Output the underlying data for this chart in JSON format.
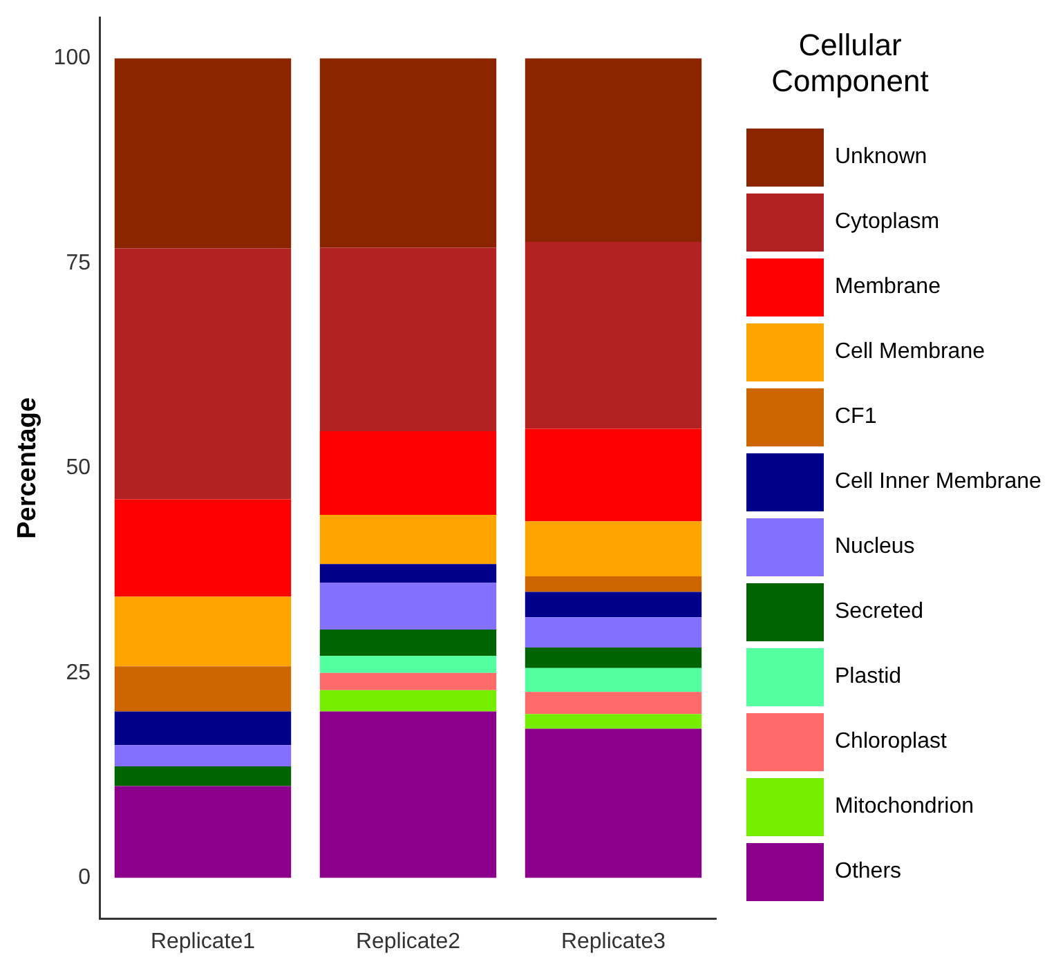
{
  "chart_data": {
    "type": "bar",
    "stacked": true,
    "ylabel": "Percentage",
    "legend_title": "Cellular Component",
    "legend": "right",
    "grid": false,
    "categories": [
      "Replicate1",
      "Replicate2",
      "Replicate3"
    ],
    "ylim": [
      -5,
      105
    ],
    "yticks": [
      0,
      25,
      50,
      75,
      100
    ],
    "series": [
      {
        "name": "Others",
        "color": "#8b008b",
        "values": [
          11.2,
          20.3,
          18.2
        ]
      },
      {
        "name": "Mitochondrion",
        "color": "#76ee00",
        "values": [
          0,
          2.6,
          1.8
        ]
      },
      {
        "name": "Chloroplast",
        "color": "#ff6a6a",
        "values": [
          0,
          2.1,
          2.7
        ]
      },
      {
        "name": "Plastid",
        "color": "#54ff9f",
        "values": [
          0,
          2.1,
          2.9
        ]
      },
      {
        "name": "Secreted",
        "color": "#006400",
        "values": [
          2.4,
          3.2,
          2.5
        ]
      },
      {
        "name": "Nucleus",
        "color": "#8470ff",
        "values": [
          2.6,
          5.7,
          3.7
        ]
      },
      {
        "name": "Cell Inner Membrane",
        "color": "#00008b",
        "values": [
          4.1,
          2.3,
          3.1
        ]
      },
      {
        "name": "CF1",
        "color": "#cd6600",
        "values": [
          5.5,
          0,
          1.9
        ]
      },
      {
        "name": "Cell Membrane",
        "color": "#ffa500",
        "values": [
          8.5,
          6.0,
          6.7
        ]
      },
      {
        "name": "Membrane",
        "color": "#ff0000",
        "values": [
          11.9,
          10.2,
          11.3
        ]
      },
      {
        "name": "Cytoplasm",
        "color": "#b22222",
        "values": [
          30.6,
          22.4,
          22.8
        ]
      },
      {
        "name": "Unknown",
        "color": "#8b2500",
        "values": [
          23.2,
          23.1,
          22.4
        ]
      }
    ]
  }
}
